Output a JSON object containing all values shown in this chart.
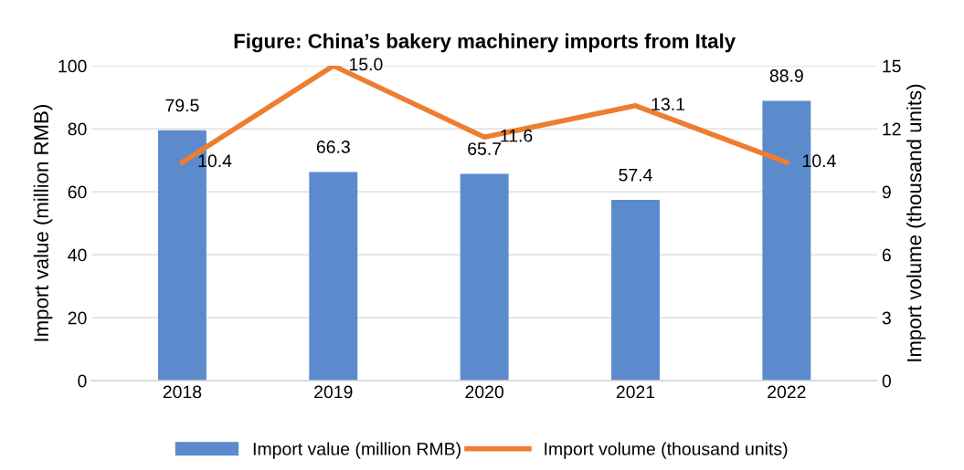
{
  "chart_data": {
    "type": "bar",
    "title": "Figure: China’s bakery machinery imports from Italy",
    "categories": [
      "2018",
      "2019",
      "2020",
      "2021",
      "2022"
    ],
    "series": [
      {
        "name": "Import value (million RMB)",
        "color": "#5b8bcc",
        "values": [
          79.5,
          66.3,
          65.7,
          57.4,
          88.9
        ]
      },
      {
        "name": "Import volume (thousand units)",
        "type": "line",
        "axis": "y2",
        "color": "#ed7d31",
        "values": [
          10.4,
          15.0,
          11.6,
          13.1,
          10.4
        ],
        "value_labels": [
          "10.4",
          "15.0",
          "11.6",
          "13.1",
          "10.4"
        ]
      }
    ],
    "value_labels": [
      "79.5",
      "66.3",
      "65.7",
      "57.4",
      "88.9"
    ],
    "ylabel": "Import value (million RMB)",
    "y2label": "Import volume (thousand units)",
    "ylim": [
      0,
      100
    ],
    "yticks": [
      0,
      20,
      40,
      60,
      80,
      100
    ],
    "y2lim": [
      0,
      15
    ],
    "y2ticks": [
      0,
      3,
      6,
      9,
      12,
      15
    ],
    "grid": "y",
    "legend": "bottom",
    "marker": "none",
    "line_style": "solid"
  }
}
